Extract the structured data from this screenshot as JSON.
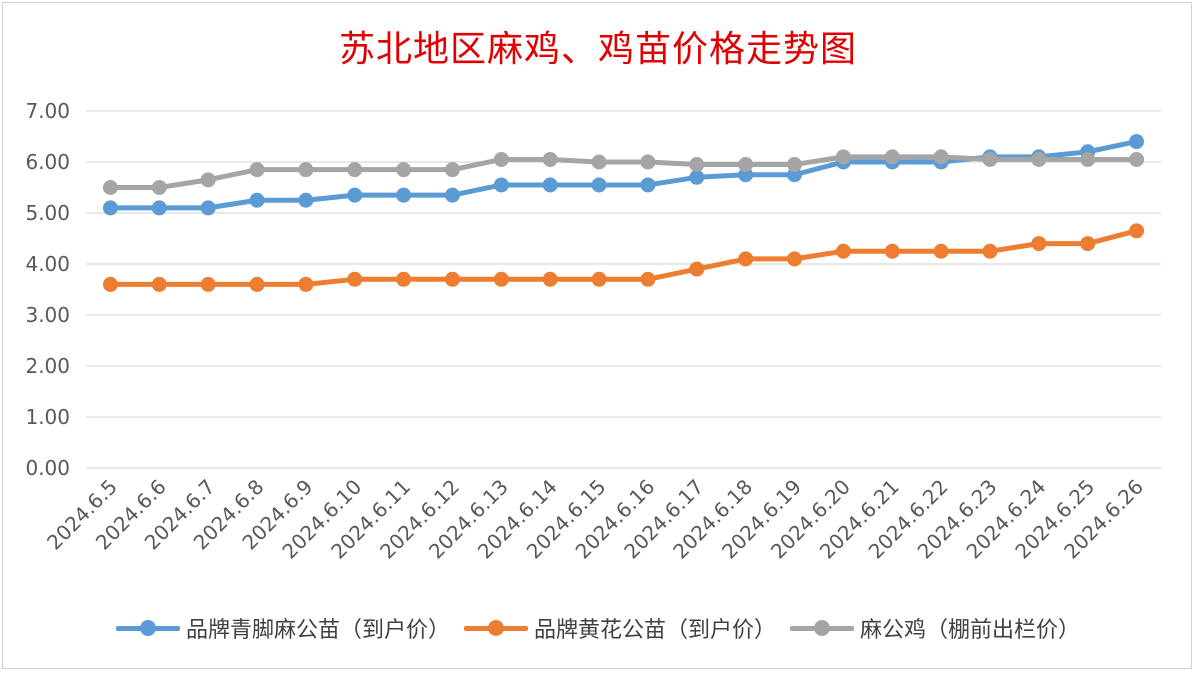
{
  "chart_data": {
    "type": "line",
    "title": "苏北地区麻鸡、鸡苗价格走势图",
    "xlabel": "",
    "ylabel": "",
    "ylim": [
      0,
      7
    ],
    "yticks": [
      "0.00",
      "1.00",
      "2.00",
      "3.00",
      "4.00",
      "5.00",
      "6.00",
      "7.00"
    ],
    "grid": true,
    "legend_position": "bottom",
    "categories": [
      "2024.6.5",
      "2024.6.6",
      "2024.6.7",
      "2024.6.8",
      "2024.6.9",
      "2024.6.10",
      "2024.6.11",
      "2024.6.12",
      "2024.6.13",
      "2024.6.14",
      "2024.6.15",
      "2024.6.16",
      "2024.6.17",
      "2024.6.18",
      "2024.6.19",
      "2024.6.20",
      "2024.6.21",
      "2024.6.22",
      "2024.6.23",
      "2024.6.24",
      "2024.6.25",
      "2024.6.26"
    ],
    "series": [
      {
        "name": "品牌青脚麻公苗（到户价）",
        "color": "#5b9bd5",
        "values": [
          5.1,
          5.1,
          5.1,
          5.25,
          5.25,
          5.35,
          5.35,
          5.35,
          5.55,
          5.55,
          5.55,
          5.55,
          5.7,
          5.75,
          5.75,
          6.0,
          6.0,
          6.0,
          6.1,
          6.1,
          6.2,
          6.4
        ]
      },
      {
        "name": "品牌黄花公苗（到户价）",
        "color": "#ed7d31",
        "values": [
          3.6,
          3.6,
          3.6,
          3.6,
          3.6,
          3.7,
          3.7,
          3.7,
          3.7,
          3.7,
          3.7,
          3.7,
          3.9,
          4.1,
          4.1,
          4.25,
          4.25,
          4.25,
          4.25,
          4.4,
          4.4,
          4.65
        ]
      },
      {
        "name": "麻公鸡（棚前出栏价）",
        "color": "#a5a5a5",
        "values": [
          5.5,
          5.5,
          5.65,
          5.85,
          5.85,
          5.85,
          5.85,
          5.85,
          6.05,
          6.05,
          6.0,
          6.0,
          5.95,
          5.95,
          5.95,
          6.1,
          6.1,
          6.1,
          6.05,
          6.05,
          6.05,
          6.05
        ]
      }
    ]
  },
  "colors": {
    "title": "#e00000",
    "gridline": "#d9d9d9",
    "axis_text": "#595959"
  }
}
